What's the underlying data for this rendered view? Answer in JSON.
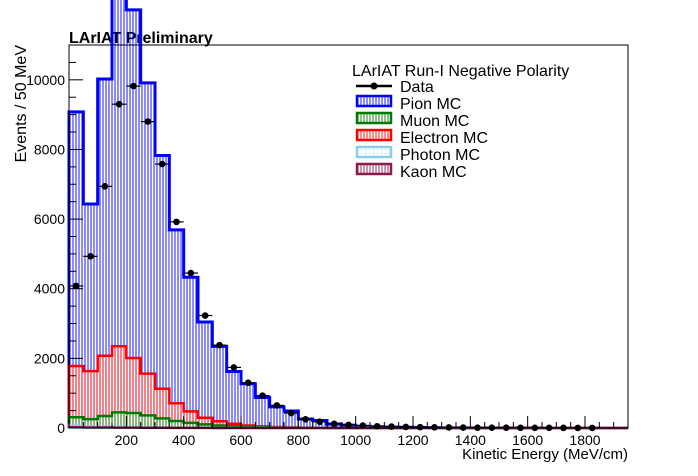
{
  "chart_data": {
    "type": "bar",
    "title": "LArIAT Preliminary",
    "xlabel": "Kinetic Energy (MeV/cm)",
    "ylabel": "Events / 50 MeV",
    "xlim": [
      0,
      1950
    ],
    "ylim": [
      0,
      11000
    ],
    "bin_width": 50,
    "xticks": [
      200,
      400,
      600,
      800,
      1000,
      1200,
      1400,
      1600,
      1800
    ],
    "xtick_labels": [
      "200",
      "400",
      "600",
      "800",
      "1000",
      "1200",
      "1400",
      "1600",
      "1800"
    ],
    "yticks": [
      0,
      2000,
      4000,
      6000,
      8000,
      10000
    ],
    "ytick_labels": [
      "0",
      "2000",
      "4000",
      "6000",
      "8000",
      "10000"
    ],
    "legend": {
      "title": "LArIAT Run-I Negative Polarity",
      "placement": "top-right",
      "entries": [
        "Data",
        "Pion MC",
        "Muon MC",
        "Electron MC",
        "Photon MC",
        "Kaon MC"
      ]
    },
    "colors": {
      "data": "#000000",
      "pion": "#0000ff",
      "muon": "#007a00",
      "electron": "#ff0000",
      "photon": "#87ceeb",
      "kaon": "#8b1a4f"
    },
    "mc_stack": {
      "pion": [
        7300,
        4800,
        7950,
        10450,
        10000,
        8350,
        6700,
        4980,
        3850,
        2750,
        2150,
        1500,
        1200,
        830,
        580,
        470,
        250,
        210,
        110,
        80,
        50,
        35,
        25,
        20,
        15,
        10,
        8,
        6,
        5,
        4,
        3,
        2,
        2,
        1,
        1,
        1,
        1,
        0,
        0
      ],
      "electron": [
        1470,
        1380,
        1730,
        1900,
        1580,
        1200,
        850,
        510,
        330,
        190,
        120,
        70,
        40,
        25,
        15,
        10,
        5,
        3,
        2,
        1,
        1,
        0,
        0,
        0,
        0,
        0,
        0,
        0,
        0,
        0,
        0,
        0,
        0,
        0,
        0,
        0,
        0,
        0,
        0
      ],
      "muon": [
        250,
        210,
        300,
        410,
        400,
        340,
        260,
        190,
        140,
        100,
        70,
        50,
        30,
        20,
        12,
        8,
        5,
        3,
        2,
        1,
        1,
        0,
        0,
        0,
        0,
        0,
        0,
        0,
        0,
        0,
        0,
        0,
        0,
        0,
        0,
        0,
        0,
        0,
        0
      ],
      "photon": [
        40,
        30,
        30,
        25,
        20,
        15,
        10,
        8,
        5,
        3,
        2,
        1,
        1,
        0,
        0,
        0,
        0,
        0,
        0,
        0,
        0,
        0,
        0,
        0,
        0,
        0,
        0,
        0,
        0,
        0,
        0,
        0,
        0,
        0,
        0,
        0,
        0,
        0,
        0
      ],
      "kaon": [
        20,
        15,
        15,
        12,
        10,
        8,
        6,
        4,
        3,
        2,
        1,
        1,
        0,
        0,
        0,
        0,
        0,
        0,
        0,
        0,
        0,
        0,
        0,
        0,
        0,
        0,
        0,
        0,
        0,
        0,
        0,
        0,
        0,
        0,
        0,
        0,
        0,
        0,
        0
      ]
    },
    "data_points": {
      "x": [
        25,
        75,
        125,
        175,
        225,
        275,
        325,
        375,
        425,
        475,
        525,
        575,
        625,
        675,
        725,
        775,
        825,
        875,
        925,
        975,
        1025,
        1075,
        1125,
        1175,
        1225,
        1275,
        1325,
        1375,
        1425,
        1475,
        1525,
        1575,
        1625,
        1675,
        1725,
        1775,
        1825
      ],
      "y": [
        4080,
        4930,
        6940,
        9300,
        9820,
        8800,
        7580,
        5920,
        4450,
        3230,
        2380,
        1740,
        1300,
        930,
        650,
        430,
        250,
        180,
        120,
        90,
        70,
        50,
        40,
        30,
        25,
        20,
        15,
        12,
        10,
        10,
        8,
        6,
        5,
        5,
        4,
        3,
        3
      ]
    }
  }
}
